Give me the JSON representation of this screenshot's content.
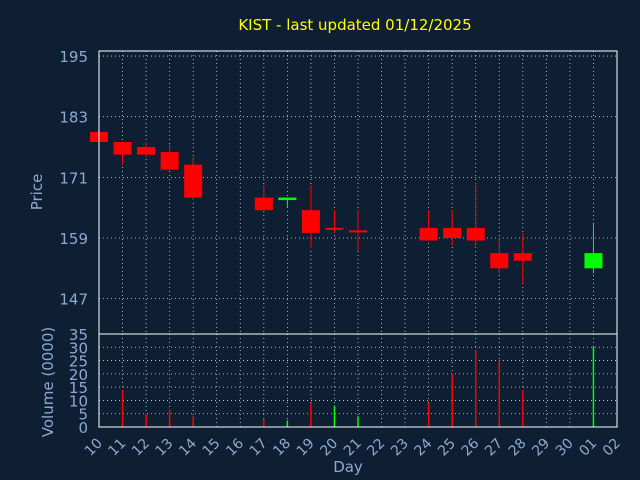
{
  "colors": {
    "background": "#0f1f33",
    "plot_border": "#ffffff",
    "grid": "#cfd8e3",
    "axis_text": "#8ea9d1",
    "title_text": "#ffff00",
    "up": "#00ff00",
    "down": "#ff0000"
  },
  "chart_data": [
    {
      "type": "candlestick",
      "title": "KIST - last updated 01/12/2025",
      "ylabel": "Price",
      "ylim": [
        140,
        196
      ],
      "yticks": [
        195,
        183,
        171,
        159,
        147
      ],
      "categories": [
        "10",
        "11",
        "12",
        "13",
        "14",
        "15",
        "16",
        "17",
        "18",
        "19",
        "20",
        "21",
        "22",
        "23",
        "24",
        "25",
        "26",
        "27",
        "28",
        "29",
        "30",
        "01",
        "02"
      ],
      "candles": [
        {
          "day": "10",
          "open": 180,
          "high": 180,
          "low": 178,
          "close": 178
        },
        {
          "day": "11",
          "open": 178,
          "high": 178,
          "low": 173.5,
          "close": 175.5
        },
        {
          "day": "12",
          "open": 177,
          "high": 178,
          "low": 175,
          "close": 175.5
        },
        {
          "day": "13",
          "open": 176,
          "high": 177.5,
          "low": 172.5,
          "close": 172.5
        },
        {
          "day": "14",
          "open": 173.5,
          "high": 175,
          "low": 166.5,
          "close": 167
        },
        {
          "day": "17",
          "open": 167,
          "high": 169.5,
          "low": 164.5,
          "close": 164.5
        },
        {
          "day": "18",
          "open": 166.5,
          "high": 167,
          "low": 165,
          "close": 167
        },
        {
          "day": "19",
          "open": 164.5,
          "high": 169.5,
          "low": 157,
          "close": 160
        },
        {
          "day": "20",
          "open": 161,
          "high": 164.5,
          "low": 160,
          "close": 161
        },
        {
          "day": "21",
          "open": 160.5,
          "high": 164.5,
          "low": 156.5,
          "close": 160.5
        },
        {
          "day": "24",
          "open": 161,
          "high": 164.5,
          "low": 158.5,
          "close": 158.5
        },
        {
          "day": "25",
          "open": 161,
          "high": 164.5,
          "low": 157.5,
          "close": 159
        },
        {
          "day": "26",
          "open": 161,
          "high": 170,
          "low": 157.5,
          "close": 158.5
        },
        {
          "day": "27",
          "open": 156,
          "high": 159,
          "low": 152,
          "close": 153
        },
        {
          "day": "28",
          "open": 156,
          "high": 160,
          "low": 150,
          "close": 154.5
        },
        {
          "day": "01",
          "open": 153,
          "high": 162,
          "low": 152,
          "close": 156
        }
      ]
    },
    {
      "type": "bar",
      "ylabel": "Volume (0000)",
      "xlabel": "Day",
      "ylim": [
        0,
        35
      ],
      "yticks": [
        35,
        30,
        25,
        20,
        15,
        10,
        5,
        0
      ],
      "categories": [
        "10",
        "11",
        "12",
        "13",
        "14",
        "15",
        "16",
        "17",
        "18",
        "19",
        "20",
        "21",
        "22",
        "23",
        "24",
        "25",
        "26",
        "27",
        "28",
        "29",
        "30",
        "01",
        "02"
      ],
      "bars": [
        {
          "day": "10",
          "value": 0.5,
          "dir": "down"
        },
        {
          "day": "11",
          "value": 14,
          "dir": "down"
        },
        {
          "day": "12",
          "value": 5,
          "dir": "down"
        },
        {
          "day": "13",
          "value": 6.5,
          "dir": "down"
        },
        {
          "day": "14",
          "value": 4,
          "dir": "down"
        },
        {
          "day": "17",
          "value": 3,
          "dir": "down"
        },
        {
          "day": "18",
          "value": 2.5,
          "dir": "up"
        },
        {
          "day": "19",
          "value": 9,
          "dir": "down"
        },
        {
          "day": "20",
          "value": 8,
          "dir": "up"
        },
        {
          "day": "21",
          "value": 4,
          "dir": "up"
        },
        {
          "day": "24",
          "value": 9,
          "dir": "down"
        },
        {
          "day": "25",
          "value": 20,
          "dir": "down"
        },
        {
          "day": "26",
          "value": 29,
          "dir": "down"
        },
        {
          "day": "27",
          "value": 25,
          "dir": "down"
        },
        {
          "day": "28",
          "value": 14,
          "dir": "down"
        },
        {
          "day": "01",
          "value": 30.5,
          "dir": "up"
        }
      ]
    }
  ]
}
